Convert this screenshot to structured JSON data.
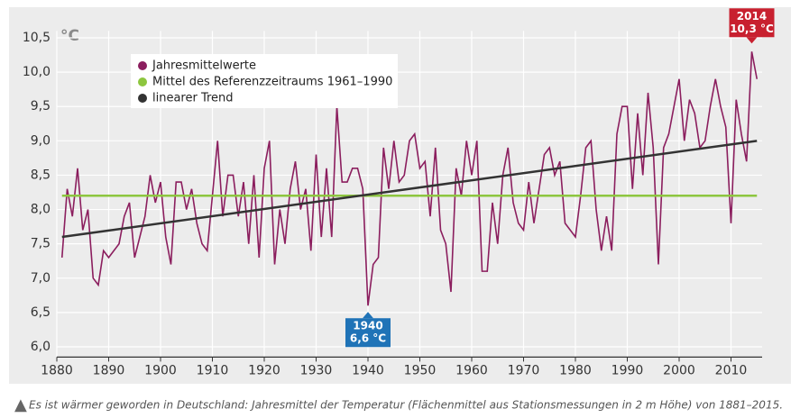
{
  "chart_data": {
    "type": "line",
    "unit_label": "°C",
    "caption": "Es ist wärmer geworden in Deutschland: Jahresmittel der Temperatur (Flächenmittel aus Stationsmessungen in 2 m Höhe) von 1881–2015.",
    "x": [
      1881,
      1882,
      1883,
      1884,
      1885,
      1886,
      1887,
      1888,
      1889,
      1890,
      1891,
      1892,
      1893,
      1894,
      1895,
      1896,
      1897,
      1898,
      1899,
      1900,
      1901,
      1902,
      1903,
      1904,
      1905,
      1906,
      1907,
      1908,
      1909,
      1910,
      1911,
      1912,
      1913,
      1914,
      1915,
      1916,
      1917,
      1918,
      1919,
      1920,
      1921,
      1922,
      1923,
      1924,
      1925,
      1926,
      1927,
      1928,
      1929,
      1930,
      1931,
      1932,
      1933,
      1934,
      1935,
      1936,
      1937,
      1938,
      1939,
      1940,
      1941,
      1942,
      1943,
      1944,
      1945,
      1946,
      1947,
      1948,
      1949,
      1950,
      1951,
      1952,
      1953,
      1954,
      1955,
      1956,
      1957,
      1958,
      1959,
      1960,
      1961,
      1962,
      1963,
      1964,
      1965,
      1966,
      1967,
      1968,
      1969,
      1970,
      1971,
      1972,
      1973,
      1974,
      1975,
      1976,
      1977,
      1978,
      1979,
      1980,
      1981,
      1982,
      1983,
      1984,
      1985,
      1986,
      1987,
      1988,
      1989,
      1990,
      1991,
      1992,
      1993,
      1994,
      1995,
      1996,
      1997,
      1998,
      1999,
      2000,
      2001,
      2002,
      2003,
      2004,
      2005,
      2006,
      2007,
      2008,
      2009,
      2010,
      2011,
      2012,
      2013,
      2014,
      2015
    ],
    "series": [
      {
        "name": "Jahresmittelwerte",
        "color": "#8b1e5e",
        "values": [
          7.3,
          8.3,
          7.9,
          8.6,
          7.7,
          8.0,
          7.0,
          6.9,
          7.4,
          7.3,
          7.4,
          7.5,
          7.9,
          8.1,
          7.3,
          7.6,
          7.9,
          8.5,
          8.1,
          8.4,
          7.6,
          7.2,
          8.4,
          8.4,
          8.0,
          8.3,
          7.8,
          7.5,
          7.4,
          8.2,
          9.0,
          7.9,
          8.5,
          8.5,
          7.9,
          8.4,
          7.5,
          8.5,
          7.3,
          8.6,
          9.0,
          7.2,
          8.0,
          7.5,
          8.3,
          8.7,
          8.0,
          8.3,
          7.4,
          8.8,
          7.6,
          8.6,
          7.6,
          9.5,
          8.4,
          8.4,
          8.6,
          8.6,
          8.3,
          6.6,
          7.2,
          7.3,
          8.9,
          8.3,
          9.0,
          8.4,
          8.5,
          9.0,
          9.1,
          8.6,
          8.7,
          7.9,
          8.9,
          7.7,
          7.5,
          6.8,
          8.6,
          8.2,
          9.0,
          8.5,
          9.0,
          7.1,
          7.1,
          8.1,
          7.5,
          8.5,
          8.9,
          8.1,
          7.8,
          7.7,
          8.4,
          7.8,
          8.3,
          8.8,
          8.9,
          8.5,
          8.7,
          7.8,
          7.7,
          7.6,
          8.2,
          8.9,
          9.0,
          8.0,
          7.4,
          7.9,
          7.4,
          9.1,
          9.5,
          9.5,
          8.3,
          9.4,
          8.5,
          9.7,
          8.9,
          7.2,
          8.9,
          9.1,
          9.5,
          9.9,
          9.0,
          9.6,
          9.4,
          8.9,
          9.0,
          9.5,
          9.9,
          9.5,
          9.2,
          7.8,
          9.6,
          9.1,
          8.7,
          10.3,
          9.9
        ]
      },
      {
        "name": "Mittel des Referenzzeitraums 1961–1990",
        "color": "#8dc63f",
        "x": [
          1881,
          2015
        ],
        "values": [
          8.2,
          8.2
        ]
      },
      {
        "name": "linearer Trend",
        "color": "#333333",
        "x": [
          1881,
          2015
        ],
        "values": [
          7.6,
          9.0
        ]
      }
    ],
    "annotations": [
      {
        "year": "2014",
        "label": "10,3 °C",
        "color": "#c8202f"
      },
      {
        "year": "1940",
        "label": "6,6 °C",
        "color": "#1f73b7"
      }
    ],
    "xlim": [
      1880,
      2016
    ],
    "ylim": [
      5.85,
      10.6
    ],
    "xticks": [
      1880,
      1890,
      1900,
      1910,
      1920,
      1930,
      1940,
      1950,
      1960,
      1970,
      1980,
      1990,
      2000,
      2010
    ],
    "yticks": [
      {
        "value": 6.0,
        "label": "6,0"
      },
      {
        "value": 6.5,
        "label": "6,5"
      },
      {
        "value": 7.0,
        "label": "7,0"
      },
      {
        "value": 7.5,
        "label": "7,5"
      },
      {
        "value": 8.0,
        "label": "8,0"
      },
      {
        "value": 8.5,
        "label": "8,5"
      },
      {
        "value": 9.0,
        "label": "9,0"
      },
      {
        "value": 9.5,
        "label": "9,5"
      },
      {
        "value": 10.0,
        "label": "10,0"
      },
      {
        "value": 10.5,
        "label": "10,5"
      }
    ],
    "grid": true
  }
}
